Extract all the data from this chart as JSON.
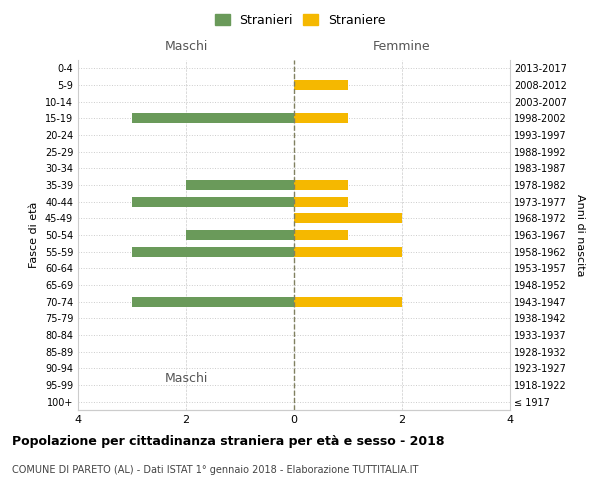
{
  "age_groups": [
    "100+",
    "95-99",
    "90-94",
    "85-89",
    "80-84",
    "75-79",
    "70-74",
    "65-69",
    "60-64",
    "55-59",
    "50-54",
    "45-49",
    "40-44",
    "35-39",
    "30-34",
    "25-29",
    "20-24",
    "15-19",
    "10-14",
    "5-9",
    "0-4"
  ],
  "birth_years": [
    "≤ 1917",
    "1918-1922",
    "1923-1927",
    "1928-1932",
    "1933-1937",
    "1938-1942",
    "1943-1947",
    "1948-1952",
    "1953-1957",
    "1958-1962",
    "1963-1967",
    "1968-1972",
    "1973-1977",
    "1978-1982",
    "1983-1987",
    "1988-1992",
    "1993-1997",
    "1998-2002",
    "2003-2007",
    "2008-2012",
    "2013-2017"
  ],
  "maschi_stranieri": [
    0,
    0,
    0,
    0,
    0,
    0,
    3,
    0,
    0,
    3,
    2,
    0,
    3,
    2,
    0,
    0,
    0,
    3,
    0,
    0,
    0
  ],
  "femmine_straniere": [
    0,
    0,
    0,
    0,
    0,
    0,
    2,
    0,
    0,
    2,
    1,
    2,
    1,
    1,
    0,
    0,
    0,
    1,
    0,
    1,
    0
  ],
  "color_maschi": "#6a9a5a",
  "color_femmine": "#f5b800",
  "title": "Popolazione per cittadinanza straniera per età e sesso - 2018",
  "subtitle": "COMUNE DI PARETO (AL) - Dati ISTAT 1° gennaio 2018 - Elaborazione TUTTITALIA.IT",
  "xlabel_left": "Maschi",
  "xlabel_right": "Femmine",
  "ylabel_left": "Fasce di età",
  "ylabel_right": "Anni di nascita",
  "legend_maschi": "Stranieri",
  "legend_femmine": "Straniere",
  "xlim": 4,
  "background_color": "#ffffff",
  "grid_color": "#cccccc",
  "grid_color_dotted": "#cccccc",
  "center_line_color": "#808060"
}
